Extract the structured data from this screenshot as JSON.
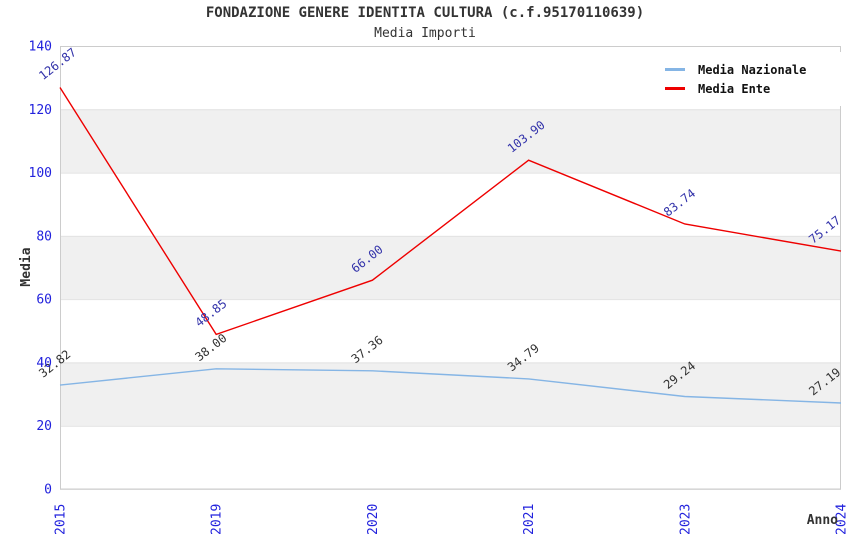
{
  "chart_data": {
    "type": "line",
    "title": "FONDAZIONE GENERE IDENTITA CULTURA (c.f.95170110639)",
    "subtitle": "Media Importi",
    "xlabel": "Anno",
    "ylabel": "Media",
    "categories": [
      "2015",
      "2019",
      "2020",
      "2021",
      "2023",
      "2024"
    ],
    "series": [
      {
        "name": "Media Nazionale",
        "color": "#85b5e5",
        "label_color": "#333333",
        "values": [
          32.82,
          38.0,
          37.36,
          34.79,
          29.24,
          27.19
        ],
        "labels": [
          "32.82",
          "38.00",
          "37.36",
          "34.79",
          "29.24",
          "27.19"
        ]
      },
      {
        "name": "Media Ente",
        "color": "#ee0000",
        "label_color": "#3333aa",
        "values": [
          126.87,
          48.85,
          66.0,
          103.9,
          83.74,
          75.17
        ],
        "labels": [
          "126.87",
          "48.85",
          "66.00",
          "103.90",
          "83.74",
          "75.17"
        ]
      }
    ],
    "ylim": [
      0,
      140
    ],
    "yticks": [
      0,
      20,
      40,
      60,
      80,
      100,
      120,
      140
    ],
    "grid": true,
    "legend_position": "top-right",
    "band_color": "#f0f0f0",
    "gridline_color": "#e2e2e2",
    "plot_border_color": "#cccccc",
    "axis_tick_color": "#2222dd",
    "axis_title_color": "#333333"
  }
}
